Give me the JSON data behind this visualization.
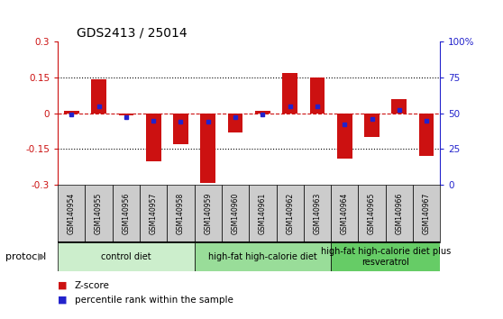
{
  "title": "GDS2413 / 25014",
  "samples": [
    "GSM140954",
    "GSM140955",
    "GSM140956",
    "GSM140957",
    "GSM140958",
    "GSM140959",
    "GSM140960",
    "GSM140961",
    "GSM140962",
    "GSM140963",
    "GSM140964",
    "GSM140965",
    "GSM140966",
    "GSM140967"
  ],
  "z_scores": [
    0.01,
    0.14,
    -0.01,
    -0.2,
    -0.13,
    -0.29,
    -0.08,
    0.01,
    0.17,
    0.15,
    -0.19,
    -0.1,
    0.06,
    -0.18
  ],
  "percentile_ranks": [
    49,
    55,
    47,
    45,
    44,
    44,
    47,
    49,
    55,
    55,
    42,
    46,
    52,
    45
  ],
  "ylim": [
    -0.3,
    0.3
  ],
  "y2lim": [
    0,
    100
  ],
  "dotted_lines": [
    0.15,
    -0.15
  ],
  "bar_color": "#CC1111",
  "dot_color": "#2222CC",
  "hline_color": "#CC1111",
  "protocol_groups": [
    {
      "label": "control diet",
      "start": 0,
      "end": 5,
      "color": "#CCEECC"
    },
    {
      "label": "high-fat high-calorie diet",
      "start": 5,
      "end": 10,
      "color": "#99DD99"
    },
    {
      "label": "high-fat high-calorie diet plus\nresveratrol",
      "start": 10,
      "end": 14,
      "color": "#66CC66"
    }
  ],
  "protocol_label": "protocol",
  "background_color": "#FFFFFF",
  "tick_bg": "#CCCCCC",
  "bar_width": 0.55,
  "title_fontsize": 10,
  "tick_fontsize": 7.5,
  "sample_fontsize": 5.5,
  "group_fontsize": 7,
  "legend_fontsize": 7.5
}
